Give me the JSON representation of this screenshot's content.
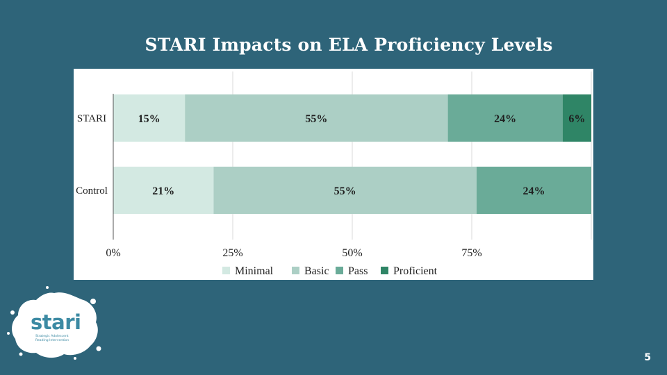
{
  "slide": {
    "title": "STARI Impacts on ELA Proficiency Levels",
    "page_number": "5"
  },
  "logo": {
    "word": "stari",
    "tagline_line1": "Strategic Adolescent",
    "tagline_line2": "Reading Intervention"
  },
  "chart_data": {
    "type": "bar",
    "orientation": "horizontal",
    "stacked": true,
    "title": "",
    "xlabel": "",
    "ylabel": "",
    "xlim": [
      0,
      100
    ],
    "x_ticks": [
      "0%",
      "25%",
      "50%",
      "75%"
    ],
    "x_tick_values": [
      0,
      25,
      50,
      75
    ],
    "categories": [
      "STARI",
      "Control"
    ],
    "series": [
      {
        "name": "Minimal",
        "color": "#d3e9e2",
        "values": [
          15,
          21
        ],
        "labels": [
          "15%",
          "21%"
        ]
      },
      {
        "name": "Basic",
        "color": "#accfc5",
        "values": [
          55,
          55
        ],
        "labels": [
          "55%",
          "55%"
        ]
      },
      {
        "name": "Pass",
        "color": "#6aab98",
        "values": [
          24,
          24
        ],
        "labels": [
          "24%",
          "24%"
        ]
      },
      {
        "name": "Proficient",
        "color": "#2f8566",
        "values": [
          6,
          0
        ],
        "labels": [
          "6%",
          ""
        ]
      }
    ],
    "legend_position": "bottom",
    "grid": true
  }
}
